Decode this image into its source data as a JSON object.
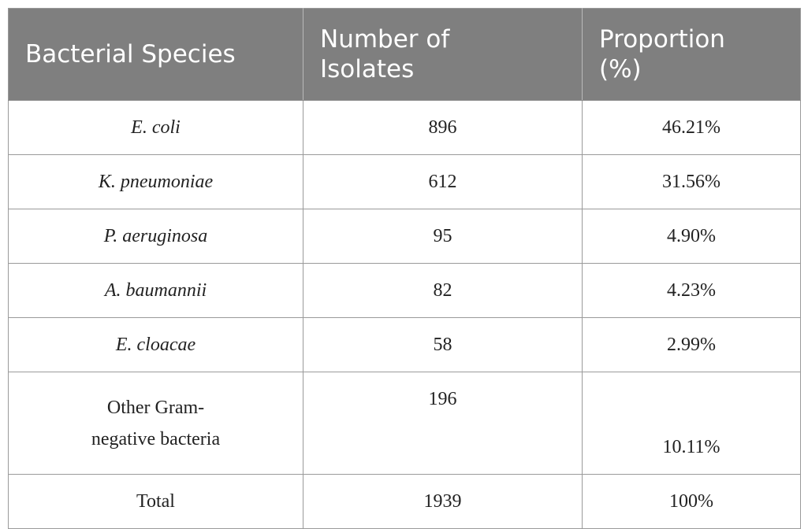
{
  "table": {
    "headers": [
      "Bacterial Species",
      "Number of Isolates",
      "Proportion (%)"
    ],
    "rows": [
      {
        "species": "E. coli",
        "isolates": "896",
        "proportion": "46.21%"
      },
      {
        "species": "K. pneumoniae",
        "isolates": "612",
        "proportion": "31.56%"
      },
      {
        "species": "P. aeruginosa",
        "isolates": "95",
        "proportion": "4.90%"
      },
      {
        "species": "A. baumannii",
        "isolates": "82",
        "proportion": "4.23%"
      },
      {
        "species": "E. cloacae",
        "isolates": "58",
        "proportion": "2.99%"
      },
      {
        "species_line1": "Other Gram-",
        "species_line2": "negative bacteria",
        "isolates": "196",
        "proportion": "10.11%"
      },
      {
        "species": "Total",
        "isolates": "1939",
        "proportion": "100%"
      }
    ]
  }
}
